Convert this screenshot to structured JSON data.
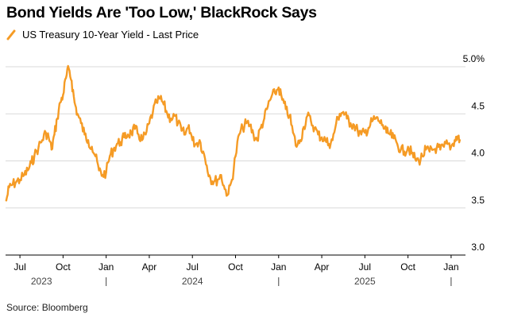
{
  "title": "Bond Yields Are 'Too Low,' BlackRock Says",
  "legend": {
    "label": "US Treasury 10-Year Yield - Last Price",
    "color": "#f59b25"
  },
  "source": "Source: Bloomberg",
  "chart_data": {
    "type": "line",
    "title": "Bond Yields Are 'Too Low,' BlackRock Says",
    "xlabel": "",
    "ylabel": "",
    "ylim": [
      3.0,
      5.0
    ],
    "grid": true,
    "y_ticks": [
      {
        "value": 5.0,
        "label": "5.0%"
      },
      {
        "value": 4.5,
        "label": "4.5"
      },
      {
        "value": 4.0,
        "label": "4.0"
      },
      {
        "value": 3.5,
        "label": "3.5"
      },
      {
        "value": 3.0,
        "label": "3.0"
      }
    ],
    "x_ticks": [
      {
        "t": 6.0,
        "label": "Jul"
      },
      {
        "t": 9.0,
        "label": "Oct"
      },
      {
        "t": 12.0,
        "label": "Jan"
      },
      {
        "t": 15.0,
        "label": "Apr"
      },
      {
        "t": 18.0,
        "label": "Jul"
      },
      {
        "t": 21.0,
        "label": "Oct"
      },
      {
        "t": 24.0,
        "label": "Jan"
      },
      {
        "t": 27.0,
        "label": "Apr"
      },
      {
        "t": 30.0,
        "label": "Jul"
      },
      {
        "t": 33.0,
        "label": "Oct"
      },
      {
        "t": 36.0,
        "label": "Jan"
      }
    ],
    "year_labels": [
      {
        "t": 7.5,
        "label": "2023"
      },
      {
        "t": 18.0,
        "label": "2024"
      },
      {
        "t": 30.0,
        "label": "2025"
      }
    ],
    "year_dividers": [
      12.0,
      24.0,
      36.0
    ],
    "x_range": [
      5.0,
      37.0
    ],
    "series": [
      {
        "name": "US Treasury 10-Year Yield - Last Price",
        "x": [
          5.05,
          5.25,
          5.5,
          5.75,
          6.0,
          6.3,
          6.55,
          6.8,
          7.0,
          7.3,
          7.55,
          7.8,
          8.0,
          8.2,
          8.4,
          8.6,
          8.8,
          9.0,
          9.2,
          9.4,
          9.6,
          9.8,
          10.0,
          10.25,
          10.5,
          10.75,
          11.0,
          11.25,
          11.5,
          11.75,
          12.0,
          12.25,
          12.5,
          12.75,
          13.0,
          13.25,
          13.5,
          13.75,
          14.0,
          14.25,
          14.5,
          14.75,
          15.0,
          15.25,
          15.5,
          15.75,
          16.0,
          16.25,
          16.5,
          16.75,
          17.0,
          17.25,
          17.5,
          17.75,
          18.0,
          18.25,
          18.5,
          18.75,
          19.0,
          19.25,
          19.5,
          19.75,
          20.0,
          20.25,
          20.5,
          20.75,
          21.0,
          21.25,
          21.5,
          21.75,
          22.0,
          22.25,
          22.5,
          22.75,
          23.0,
          23.25,
          23.5,
          23.75,
          24.0,
          24.25,
          24.5,
          24.75,
          25.0,
          25.25,
          25.5,
          25.75,
          26.0,
          26.25,
          26.5,
          26.75,
          27.0,
          27.25,
          27.5,
          27.75,
          28.0,
          28.25,
          28.5,
          28.75,
          29.0,
          29.25,
          29.5,
          29.75,
          30.0,
          30.25,
          30.5,
          30.75,
          31.0,
          31.25,
          31.5,
          31.75,
          32.0,
          32.25,
          32.5,
          32.75,
          33.0,
          33.25,
          33.5,
          33.75,
          34.0,
          34.25,
          34.5,
          34.75,
          35.0,
          35.25,
          35.5,
          35.75,
          36.0,
          36.25,
          36.45,
          36.6
        ],
        "values": [
          3.58,
          3.72,
          3.75,
          3.78,
          3.8,
          3.85,
          3.9,
          3.98,
          4.05,
          4.15,
          4.22,
          4.3,
          4.25,
          4.12,
          4.28,
          4.45,
          4.62,
          4.7,
          4.88,
          4.98,
          4.85,
          4.62,
          4.5,
          4.4,
          4.28,
          4.22,
          4.15,
          4.05,
          3.9,
          3.85,
          3.88,
          4.05,
          4.12,
          4.18,
          4.2,
          4.25,
          4.28,
          4.3,
          4.34,
          4.28,
          4.22,
          4.28,
          4.4,
          4.52,
          4.62,
          4.66,
          4.6,
          4.5,
          4.45,
          4.48,
          4.4,
          4.32,
          4.28,
          4.38,
          4.22,
          4.18,
          4.22,
          4.1,
          3.95,
          3.82,
          3.78,
          3.8,
          3.85,
          3.7,
          3.65,
          3.8,
          4.05,
          4.28,
          4.35,
          4.4,
          4.38,
          4.28,
          4.22,
          4.35,
          4.45,
          4.58,
          4.68,
          4.72,
          4.78,
          4.65,
          4.55,
          4.48,
          4.3,
          4.15,
          4.22,
          4.36,
          4.48,
          4.42,
          4.35,
          4.28,
          4.25,
          4.22,
          4.18,
          4.22,
          4.4,
          4.5,
          4.52,
          4.45,
          4.4,
          4.38,
          4.32,
          4.28,
          4.3,
          4.35,
          4.42,
          4.45,
          4.42,
          4.38,
          4.3,
          4.28,
          4.24,
          4.18,
          4.12,
          4.1,
          4.15,
          4.08,
          4.02,
          4.0,
          4.05,
          4.12,
          4.1,
          4.12,
          4.14,
          4.12,
          4.15,
          4.18,
          4.15,
          4.22,
          4.26,
          4.22
        ]
      }
    ]
  }
}
